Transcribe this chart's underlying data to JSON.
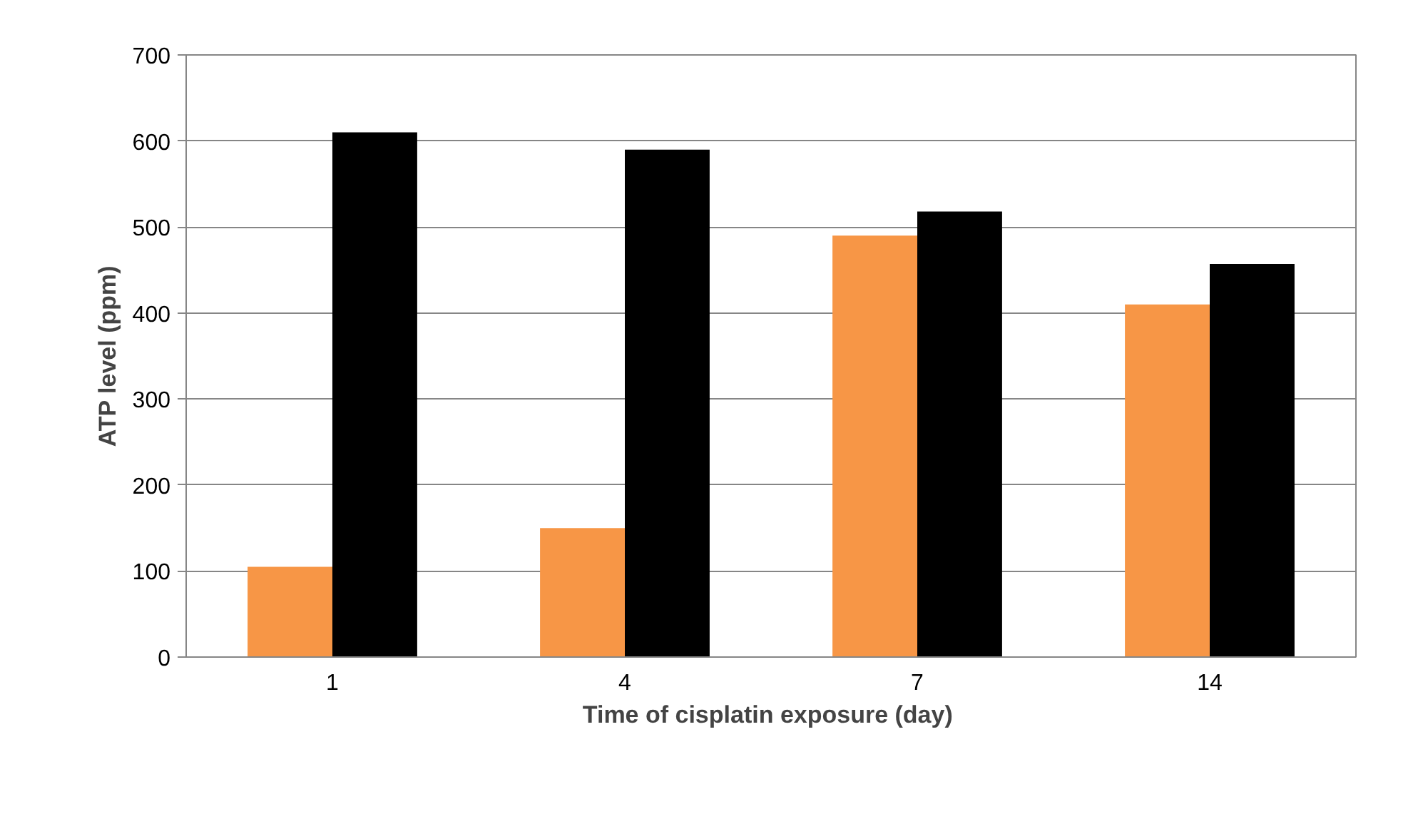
{
  "chart_data": {
    "type": "bar",
    "xlabel": "Time of  cisplatin exposure (day)",
    "ylabel": "ATP level (ppm)",
    "categories": [
      "1",
      "4",
      "7",
      "14"
    ],
    "series": [
      {
        "color": "#f79646",
        "values": [
          105,
          150,
          490,
          410
        ]
      },
      {
        "color": "#000000",
        "values": [
          610,
          590,
          518,
          457
        ]
      }
    ],
    "ylim": [
      0,
      700
    ],
    "yticks": [
      0,
      100,
      200,
      300,
      400,
      500,
      600,
      700
    ],
    "grid": "y"
  }
}
